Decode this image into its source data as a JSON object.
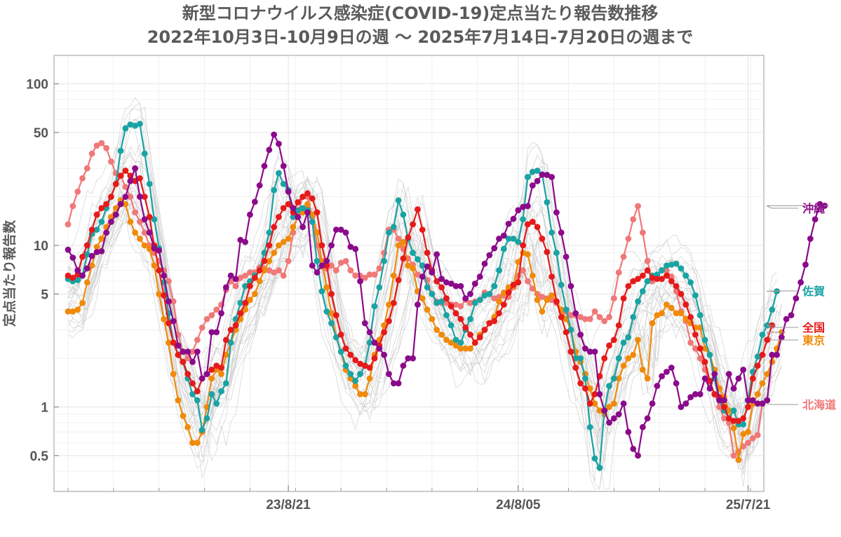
{
  "chart_data": {
    "type": "line",
    "title": "新型コロナウイルス感染症(COVID-19)定点当たり報告数推移",
    "subtitle": "2022年10月3日-10月9日の週 〜 2025年7月14日-7月20日の週まで",
    "ylabel": "定点当たり報告数",
    "xlabel": "",
    "yscale": "log",
    "ylim": [
      0.3,
      150
    ],
    "yticks": [
      0.5,
      1,
      5,
      10,
      50,
      100
    ],
    "ytick_labels": [
      "0.5",
      "1",
      "5",
      "10",
      "50",
      "100"
    ],
    "xlim": [
      0,
      145
    ],
    "xticks": [
      46,
      94,
      142
    ],
    "xtick_labels": [
      "23/8/21",
      "24/8/05",
      "25/7/21"
    ],
    "minor_x_every_weeks": 9.5,
    "grid": true,
    "background_series_note": "other prefectures (thin gray lines)",
    "series": [
      {
        "name": "沖縄",
        "color": "#8b0a8b",
        "values": [
          9.4,
          8.4,
          7,
          6.5,
          7.2,
          8.6,
          9.1,
          9.2,
          12,
          14,
          15.5,
          18,
          20,
          25,
          30,
          20,
          14.5,
          12,
          9.6,
          9.3,
          6.5,
          4.5,
          3.4,
          2.4,
          2.2,
          2.2,
          1.9,
          2.2,
          1.5,
          1.6,
          2.9,
          2.9,
          3.8,
          5.5,
          6.5,
          6.2,
          10.8,
          10.5,
          15.5,
          18.6,
          23.5,
          31,
          39,
          48.5,
          42.5,
          31,
          21.5,
          17,
          15,
          13,
          16,
          7.5,
          6.8,
          7.5,
          8,
          10,
          12.5,
          12.5,
          12,
          9.8,
          9.5,
          6,
          3.3,
          2.9,
          2.5,
          2.3,
          2.1,
          1.6,
          1.4,
          1.4,
          1.8,
          2,
          2,
          4.3,
          6.4,
          7.4,
          6.8,
          8.8,
          6.2,
          5.9,
          5.8,
          5.6,
          5.6,
          4.7,
          5,
          5.8,
          6.4,
          7.7,
          8.7,
          9.6,
          11,
          11.5,
          13.6,
          14.6,
          16.5,
          17.3,
          17.5,
          23.5,
          25,
          27.4,
          27.3,
          26.5,
          16,
          12,
          8.5,
          5.6,
          3.8,
          2.8,
          2.3,
          2.2,
          2.2,
          1.2,
          0.95,
          0.8,
          0.85,
          0.9,
          1.05,
          0.7,
          0.55,
          0.5,
          0.75,
          0.85,
          1.05,
          1.35,
          1.55,
          1.65,
          1.75,
          1.4,
          1,
          1.05,
          1.15,
          1.2,
          1.2,
          1.5,
          1.3,
          1.6,
          1.1,
          1.1,
          1.6,
          1.3,
          1.5,
          1.7,
          1.1,
          1.1,
          1.05,
          1.05,
          1.1,
          2.1,
          2.1,
          2.7,
          3.5,
          3.7,
          4.7,
          5.9,
          7.6,
          11,
          14.5,
          18,
          17.6
        ]
      },
      {
        "name": "佐賀",
        "color": "#1aa3a3",
        "values": [
          6.2,
          6,
          6.1,
          6.5,
          8.8,
          11.8,
          12.5,
          14,
          17,
          20,
          24,
          38.5,
          53,
          56,
          55,
          56.5,
          37,
          24,
          14.5,
          9.6,
          5.9,
          3.8,
          2.5,
          2.1,
          1.9,
          1.5,
          1.2,
          1.1,
          0.72,
          0.85,
          1.2,
          1.05,
          1.25,
          1.4,
          2.5,
          3.5,
          4.4,
          5.6,
          6,
          6.5,
          7,
          9,
          12,
          22,
          28,
          24,
          22,
          15,
          16.5,
          17,
          16.5,
          14,
          8,
          5.2,
          3.9,
          3.3,
          2.7,
          2.2,
          1.8,
          1.6,
          1.45,
          1.6,
          1.8,
          2.5,
          4.2,
          5.5,
          8,
          12,
          13,
          19,
          15.5,
          11,
          9,
          8.2,
          7.5,
          5.5,
          5,
          4.4,
          4.5,
          3.7,
          3.2,
          2.6,
          2.5,
          3,
          3.5,
          4.4,
          4.6,
          4.9,
          5,
          5.6,
          7,
          9.5,
          11,
          11,
          10.5,
          14.5,
          26.5,
          28.5,
          29,
          27.5,
          18.5,
          12,
          9,
          5.7,
          4,
          3,
          2,
          2,
          1.5,
          0.75,
          0.48,
          0.42,
          0.95,
          1.35,
          1.5,
          2,
          2.5,
          2.7,
          3.6,
          4.5,
          5.2,
          6,
          6.5,
          6.6,
          7,
          7.5,
          7.6,
          7.7,
          7.2,
          6.5,
          5.9,
          4.9,
          3.7,
          2.6,
          2.1,
          1.5,
          1.1,
          0.95,
          0.85,
          0.95,
          0.78,
          0.78,
          1.1,
          1.65,
          2.05,
          2.8,
          3.2,
          4,
          5.2
        ]
      },
      {
        "name": "全国",
        "color": "#e61a1a",
        "values": [
          6.5,
          6.3,
          6.6,
          8.5,
          10,
          12.5,
          15.5,
          17,
          18,
          20,
          24,
          27,
          29,
          27,
          25,
          26,
          20,
          15,
          10,
          7,
          4.9,
          3.3,
          2.5,
          2.1,
          1.9,
          1.6,
          1.4,
          1.25,
          1.5,
          1.6,
          1.7,
          1.8,
          1.75,
          2.6,
          3,
          3.2,
          3.8,
          4.4,
          5.6,
          6.3,
          7,
          8,
          10,
          13,
          15,
          17,
          18,
          16,
          18.5,
          20,
          21,
          19.5,
          16,
          10,
          7.5,
          5,
          3.7,
          2.8,
          2.3,
          2.1,
          1.95,
          1.85,
          1.8,
          1.75,
          2,
          2.4,
          2.9,
          3.4,
          4.4,
          6.1,
          8.3,
          11.2,
          13.5,
          16.7,
          12.5,
          9,
          7,
          6,
          5.5,
          4.7,
          4.2,
          3.8,
          3.5,
          3.1,
          2.8,
          2.5,
          2.7,
          3,
          3.3,
          3.4,
          3.8,
          4.3,
          5.1,
          5.7,
          5.9,
          10,
          13.5,
          14,
          13,
          11,
          9.1,
          6.4,
          4.5,
          3.6,
          2.9,
          2.2,
          1.75,
          1.4,
          1.3,
          1.05,
          1.2,
          1.55,
          2,
          2.4,
          2.6,
          3.2,
          4.7,
          5.6,
          6,
          6.2,
          6.5,
          7,
          6.3,
          6.2,
          6.2,
          6.5,
          6,
          5.6,
          5,
          4.3,
          3.6,
          2.8,
          2.3,
          1.9,
          1.45,
          1.2,
          1.15,
          1,
          0.85,
          0.82,
          0.82,
          0.85,
          1,
          1.5,
          1.8,
          2.1,
          2.6,
          3.2
        ]
      },
      {
        "name": "東京",
        "color": "#f08a0a",
        "values": [
          3.9,
          3.9,
          4,
          4.4,
          5.9,
          7.5,
          9.8,
          11,
          13,
          15,
          17,
          19,
          18,
          14,
          12,
          11,
          10,
          9.5,
          7.5,
          5,
          3.5,
          2.5,
          1.6,
          1.1,
          0.88,
          0.75,
          0.6,
          0.6,
          0.7,
          1,
          1.5,
          1.7,
          1.6,
          2.1,
          2.5,
          3,
          3.5,
          4,
          4.6,
          5,
          6,
          7,
          8,
          9,
          10,
          10.5,
          11,
          13,
          15,
          16,
          18,
          15.5,
          12,
          8,
          5.5,
          3.8,
          2.7,
          2.2,
          1.7,
          1.5,
          1.35,
          1.2,
          1.2,
          1.5,
          2.1,
          2.6,
          3.2,
          4.3,
          6.5,
          10,
          10.5,
          7.5,
          7.2,
          5.2,
          4.7,
          4,
          3.5,
          3,
          2.8,
          2.6,
          2.5,
          2.4,
          2.3,
          2.3,
          2.3,
          2.5,
          2.8,
          3,
          3.3,
          3.6,
          4.5,
          5.1,
          5.5,
          5.6,
          7.9,
          9,
          8.8,
          6.5,
          4.6,
          3.9,
          4.6,
          4.9,
          4.5,
          4,
          3.5,
          3,
          2.2,
          1.9,
          1.6,
          1.3,
          1.05,
          0.95,
          0.9,
          1,
          1.05,
          1.5,
          1.8,
          2,
          2.1,
          2.6,
          1.7,
          1.5,
          3.3,
          3.7,
          3.8,
          4.3,
          4.1,
          3.8,
          3.8,
          3.5,
          3.3,
          3.1,
          3.1,
          2.3,
          2.1,
          1.7,
          1.3,
          1.15,
          0.95,
          0.74,
          0.47,
          0.68,
          0.7,
          1.05,
          1.2,
          1.4,
          1.6,
          1.9,
          2.3,
          2.9
        ]
      },
      {
        "name": "北海道",
        "color": "#f07878",
        "values": [
          13.5,
          17.5,
          21.5,
          26,
          30,
          37,
          41.5,
          43,
          40,
          33,
          28,
          27,
          23,
          20,
          16,
          14,
          12,
          10,
          9,
          8,
          7,
          6,
          4.5,
          2.8,
          2.2,
          2,
          2.2,
          2.6,
          3.1,
          3.5,
          3.7,
          4,
          4.3,
          5.3,
          6,
          5.6,
          6.3,
          6.5,
          6.8,
          6.8,
          7.3,
          7.2,
          7,
          6.8,
          7,
          6.5,
          8,
          12,
          16,
          20,
          20,
          15,
          10,
          7.4,
          7.2,
          7.5,
          7,
          7.8,
          8,
          7,
          6.5,
          6.5,
          6.3,
          6.6,
          6.6,
          7.2,
          9,
          12.5,
          12.5,
          11,
          9.5,
          8.3,
          7.6,
          6.6,
          6.4,
          6.1,
          5,
          4.5,
          4.4,
          4.4,
          4.3,
          4.3,
          4.2,
          4.6,
          4.4,
          4.5,
          4.6,
          5.1,
          5,
          4.7,
          4.8,
          4.9,
          4.8,
          5.5,
          6.5,
          7,
          6,
          5.4,
          5,
          4.8,
          4.7,
          4.6,
          4.4,
          3.9,
          3.9,
          3.7,
          3.7,
          3.6,
          3.5,
          3.5,
          3.9,
          3.6,
          3.4,
          3.6,
          4.7,
          6.8,
          8.5,
          11,
          14.5,
          17.5,
          12,
          8,
          6,
          6.5,
          7,
          7,
          6.4,
          5.2,
          3.9,
          3.4,
          2.5,
          2.3,
          2,
          1.7,
          1.4,
          1.2,
          1,
          0.85,
          0.8,
          0.5,
          0.53,
          0.57,
          0.6,
          0.64,
          0.67,
          1.05
        ]
      }
    ],
    "legend": [
      {
        "name": "沖縄",
        "color": "#8b0a8b"
      },
      {
        "name": "佐賀",
        "color": "#1aa3a3"
      },
      {
        "name": "全国",
        "color": "#e61a1a"
      },
      {
        "name": "東京",
        "color": "#f08a0a"
      },
      {
        "name": "北海道",
        "color": "#f07878"
      }
    ]
  }
}
